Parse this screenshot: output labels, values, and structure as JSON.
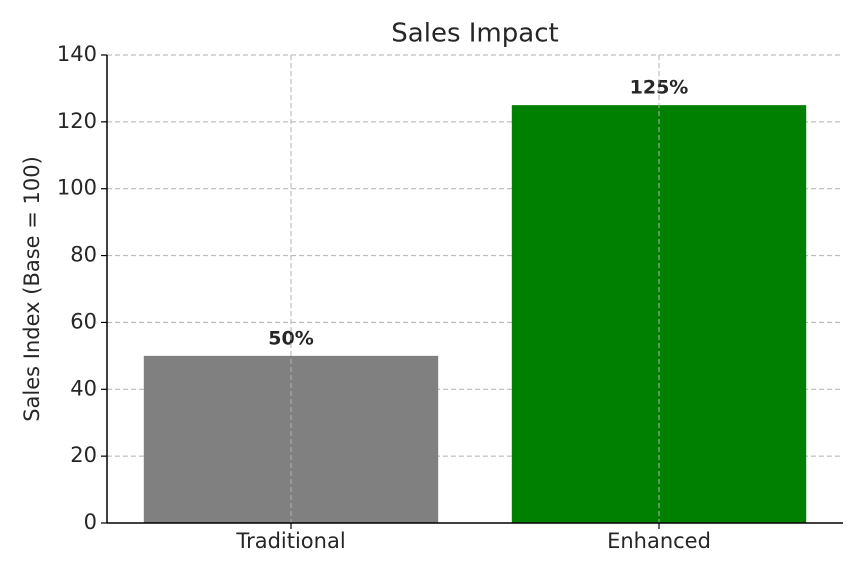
{
  "chart_data": {
    "type": "bar",
    "title": "Sales Impact",
    "y_label": "Sales Index (Base = 100)",
    "categories": [
      "Traditional",
      "Enhanced"
    ],
    "values": [
      50,
      125
    ],
    "value_labels": [
      "50%",
      "125%"
    ],
    "colors": [
      "#808080",
      "#008000"
    ],
    "ylim": [
      0,
      140
    ],
    "yticks": [
      0,
      20,
      40,
      60,
      80,
      100,
      120,
      140
    ],
    "grid": true
  }
}
